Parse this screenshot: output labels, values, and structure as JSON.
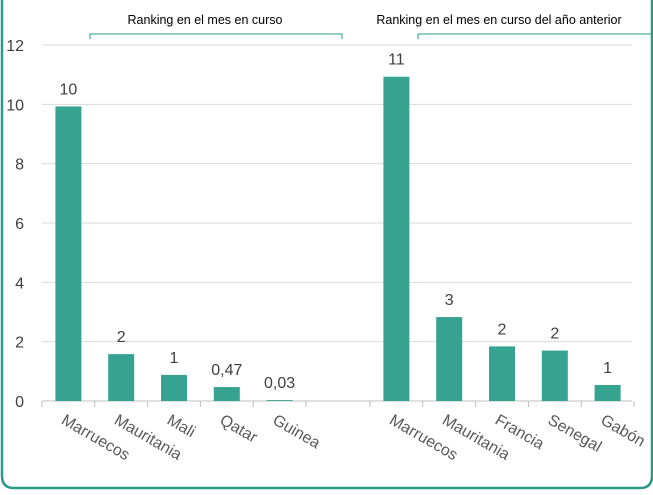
{
  "chart_data": {
    "type": "bar",
    "ylim": [
      0,
      12
    ],
    "yticks": [
      0,
      2,
      4,
      6,
      8,
      10,
      12
    ],
    "grid": true,
    "bar_color": "#36A390",
    "frame_color": "#2E9A85",
    "groups": [
      {
        "title": "Ranking en el mes en curso",
        "categories": [
          "Marruecos",
          "Mauritania",
          "Mali",
          "Qatar",
          "Guinea"
        ],
        "values": [
          9.93,
          1.58,
          0.88,
          0.47,
          0.03
        ],
        "labels": [
          "10",
          "2",
          "1",
          "0,47",
          "0,03"
        ]
      },
      {
        "title": "Ranking en el mes en curso del año anterior",
        "categories": [
          "Marruecos",
          "Mauritania",
          "Francia",
          "Senegal",
          "Gabón"
        ],
        "values": [
          10.93,
          2.83,
          1.84,
          1.7,
          0.54
        ],
        "labels": [
          "11",
          "3",
          "2",
          "2",
          "1"
        ]
      }
    ]
  }
}
